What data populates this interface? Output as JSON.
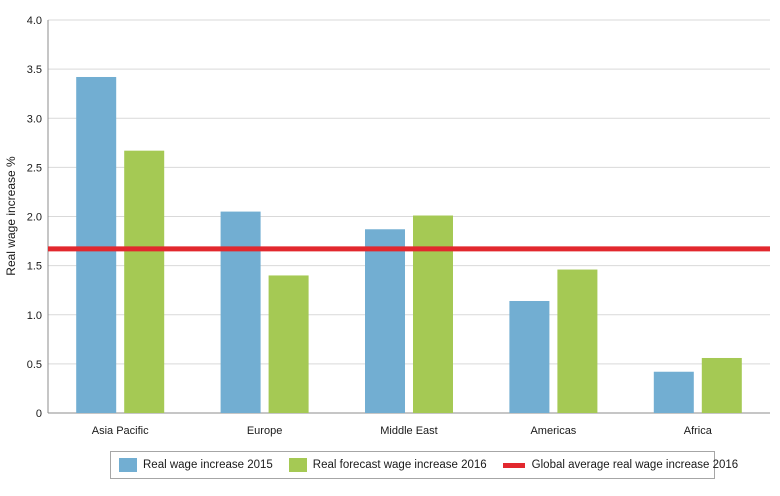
{
  "chart_data": {
    "type": "bar",
    "ylabel": "Real wage increase %",
    "ylim": [
      0,
      4.0
    ],
    "yticks": [
      "0",
      "0.5",
      "1.0",
      "1.5",
      "2.0",
      "2.5",
      "3.0",
      "3.5",
      "4.0"
    ],
    "ytick_values": [
      0,
      0.5,
      1.0,
      1.5,
      2.0,
      2.5,
      3.0,
      3.5,
      4.0
    ],
    "categories": [
      "Asia Pacific",
      "Europe",
      "Middle East",
      "Americas",
      "Africa"
    ],
    "series": [
      {
        "name": "Real wage increase 2015",
        "color": "#72aed2",
        "values": [
          3.42,
          2.05,
          1.87,
          1.14,
          0.42
        ]
      },
      {
        "name": "Real forecast wage increase 2016",
        "color": "#a5c954",
        "values": [
          2.67,
          1.4,
          2.01,
          1.46,
          0.56
        ]
      }
    ],
    "reference_line": {
      "name": "Global average real wage increase 2016",
      "color": "#e2282e",
      "value": 1.67
    },
    "legend_position": "bottom"
  }
}
